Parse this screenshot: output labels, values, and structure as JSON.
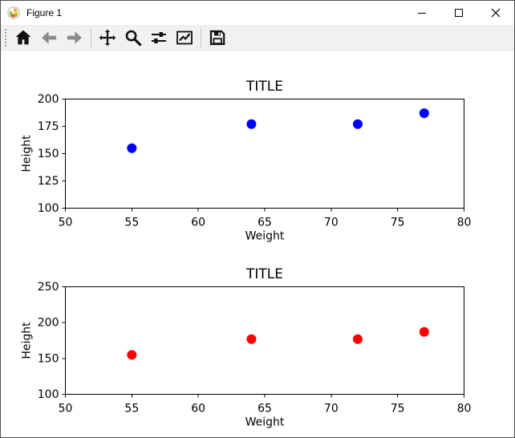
{
  "window": {
    "title": "Figure 1",
    "controls": [
      {
        "name": "minimize",
        "icon": "minimize-icon"
      },
      {
        "name": "maximize",
        "icon": "maximize-icon"
      },
      {
        "name": "close",
        "icon": "close-icon"
      }
    ]
  },
  "toolbar": {
    "buttons": [
      {
        "name": "home",
        "icon": "home-icon",
        "enabled": true
      },
      {
        "name": "back",
        "icon": "arrow-left-icon",
        "enabled": false
      },
      {
        "name": "forward",
        "icon": "arrow-right-icon",
        "enabled": false
      },
      {
        "name": "pan",
        "icon": "move-arrows-icon",
        "enabled": true
      },
      {
        "name": "zoom",
        "icon": "magnifier-icon",
        "enabled": true
      },
      {
        "name": "configure-subplots",
        "icon": "sliders-icon",
        "enabled": true
      },
      {
        "name": "edit-parameters",
        "icon": "line-chart-icon",
        "enabled": true
      },
      {
        "name": "save",
        "icon": "floppy-disk-icon",
        "enabled": true
      }
    ]
  },
  "colors": {
    "series_top": "#0000ff",
    "series_bottom": "#ff0000",
    "axis": "#000000",
    "disabled_icon": "#8a8a8a",
    "icon": "#111111"
  },
  "chart_data": [
    {
      "type": "scatter",
      "title": "TITLE",
      "xlabel": "Weight",
      "ylabel": "Height",
      "x": [
        55,
        64,
        72,
        77
      ],
      "y": [
        155,
        177,
        177,
        187
      ],
      "xlim": [
        50,
        80
      ],
      "ylim": [
        100,
        200
      ],
      "xticks": [
        50,
        55,
        60,
        65,
        70,
        75,
        80
      ],
      "yticks": [
        100,
        125,
        150,
        175,
        200
      ],
      "marker_color": "#0000ff",
      "grid": false,
      "legend": null
    },
    {
      "type": "scatter",
      "title": "TITLE",
      "xlabel": "Weight",
      "ylabel": "Height",
      "x": [
        55,
        64,
        72,
        77
      ],
      "y": [
        155,
        177,
        177,
        187
      ],
      "xlim": [
        50,
        80
      ],
      "ylim": [
        100,
        250
      ],
      "xticks": [
        50,
        55,
        60,
        65,
        70,
        75,
        80
      ],
      "yticks": [
        100,
        150,
        200,
        250
      ],
      "marker_color": "#ff0000",
      "grid": false,
      "legend": null
    }
  ]
}
